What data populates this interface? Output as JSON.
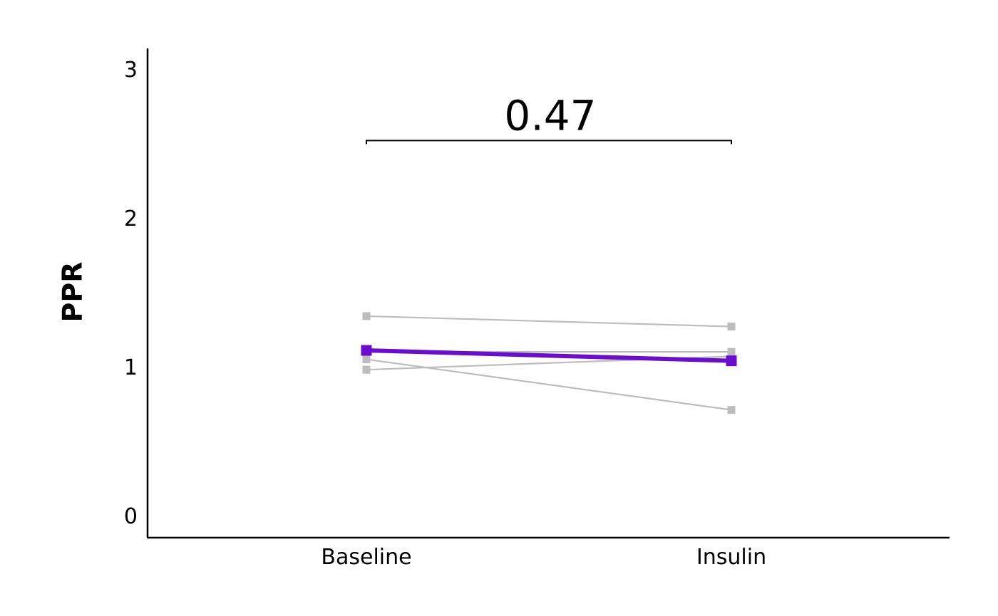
{
  "chart_data": {
    "type": "line",
    "title": "",
    "xlabel": "",
    "ylabel": "PPR",
    "categories": [
      "Baseline",
      "Insulin"
    ],
    "ylim": [
      0,
      3
    ],
    "yticks": [
      0,
      1,
      2,
      3
    ],
    "grid": false,
    "legend": "none",
    "series": [
      {
        "values": [
          1.34,
          1.27
        ],
        "color": "#bdbdbd",
        "role": "individual"
      },
      {
        "values": [
          1.1,
          1.1
        ],
        "color": "#bdbdbd",
        "role": "individual"
      },
      {
        "values": [
          1.05,
          0.71
        ],
        "color": "#bdbdbd",
        "role": "individual"
      },
      {
        "values": [
          0.98,
          1.07
        ],
        "color": "#bdbdbd",
        "role": "individual"
      },
      {
        "values": [
          1.11,
          1.04
        ],
        "color": "#6a0dcf",
        "role": "mean"
      }
    ],
    "annotations": [
      {
        "text": "0.47",
        "between": [
          "Baseline",
          "Insulin"
        ],
        "y": 2.52
      }
    ]
  }
}
